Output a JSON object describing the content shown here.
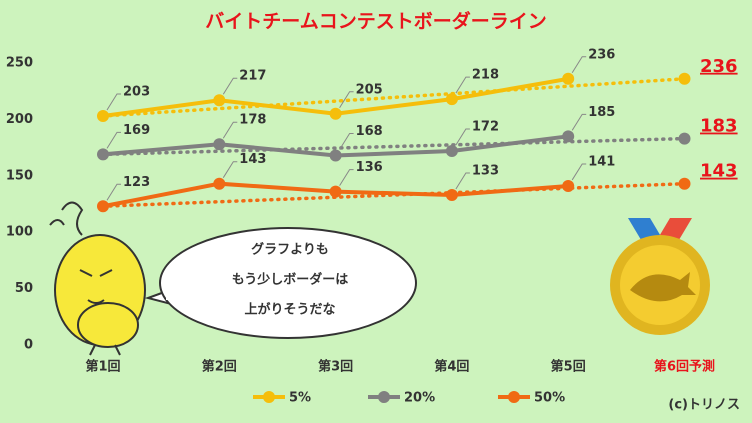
{
  "chart_data": {
    "type": "line",
    "title": "バイトチームコンテストボーダーライン",
    "categories": [
      "第1回",
      "第2回",
      "第3回",
      "第4回",
      "第5回",
      "第6回予測"
    ],
    "series": [
      {
        "name": "5%",
        "color": "#f5be0b",
        "values": [
          203,
          217,
          205,
          218,
          236,
          null
        ],
        "forecast": 236
      },
      {
        "name": "20%",
        "color": "#808080",
        "values": [
          169,
          178,
          168,
          172,
          185,
          null
        ],
        "forecast": 183
      },
      {
        "name": "50%",
        "color": "#f06a14",
        "values": [
          123,
          143,
          136,
          133,
          141,
          null
        ],
        "forecast": 143
      }
    ],
    "forecast_color": "#e8141c",
    "ylim": [
      0,
      250
    ],
    "yticks": [
      0,
      50,
      100,
      150,
      200,
      250
    ],
    "grid": false,
    "legend": "bottom",
    "speech": [
      "グラフよりも",
      "もう少しボーダーは",
      "上がりそうだな"
    ],
    "credit": "(c)トリノス"
  }
}
